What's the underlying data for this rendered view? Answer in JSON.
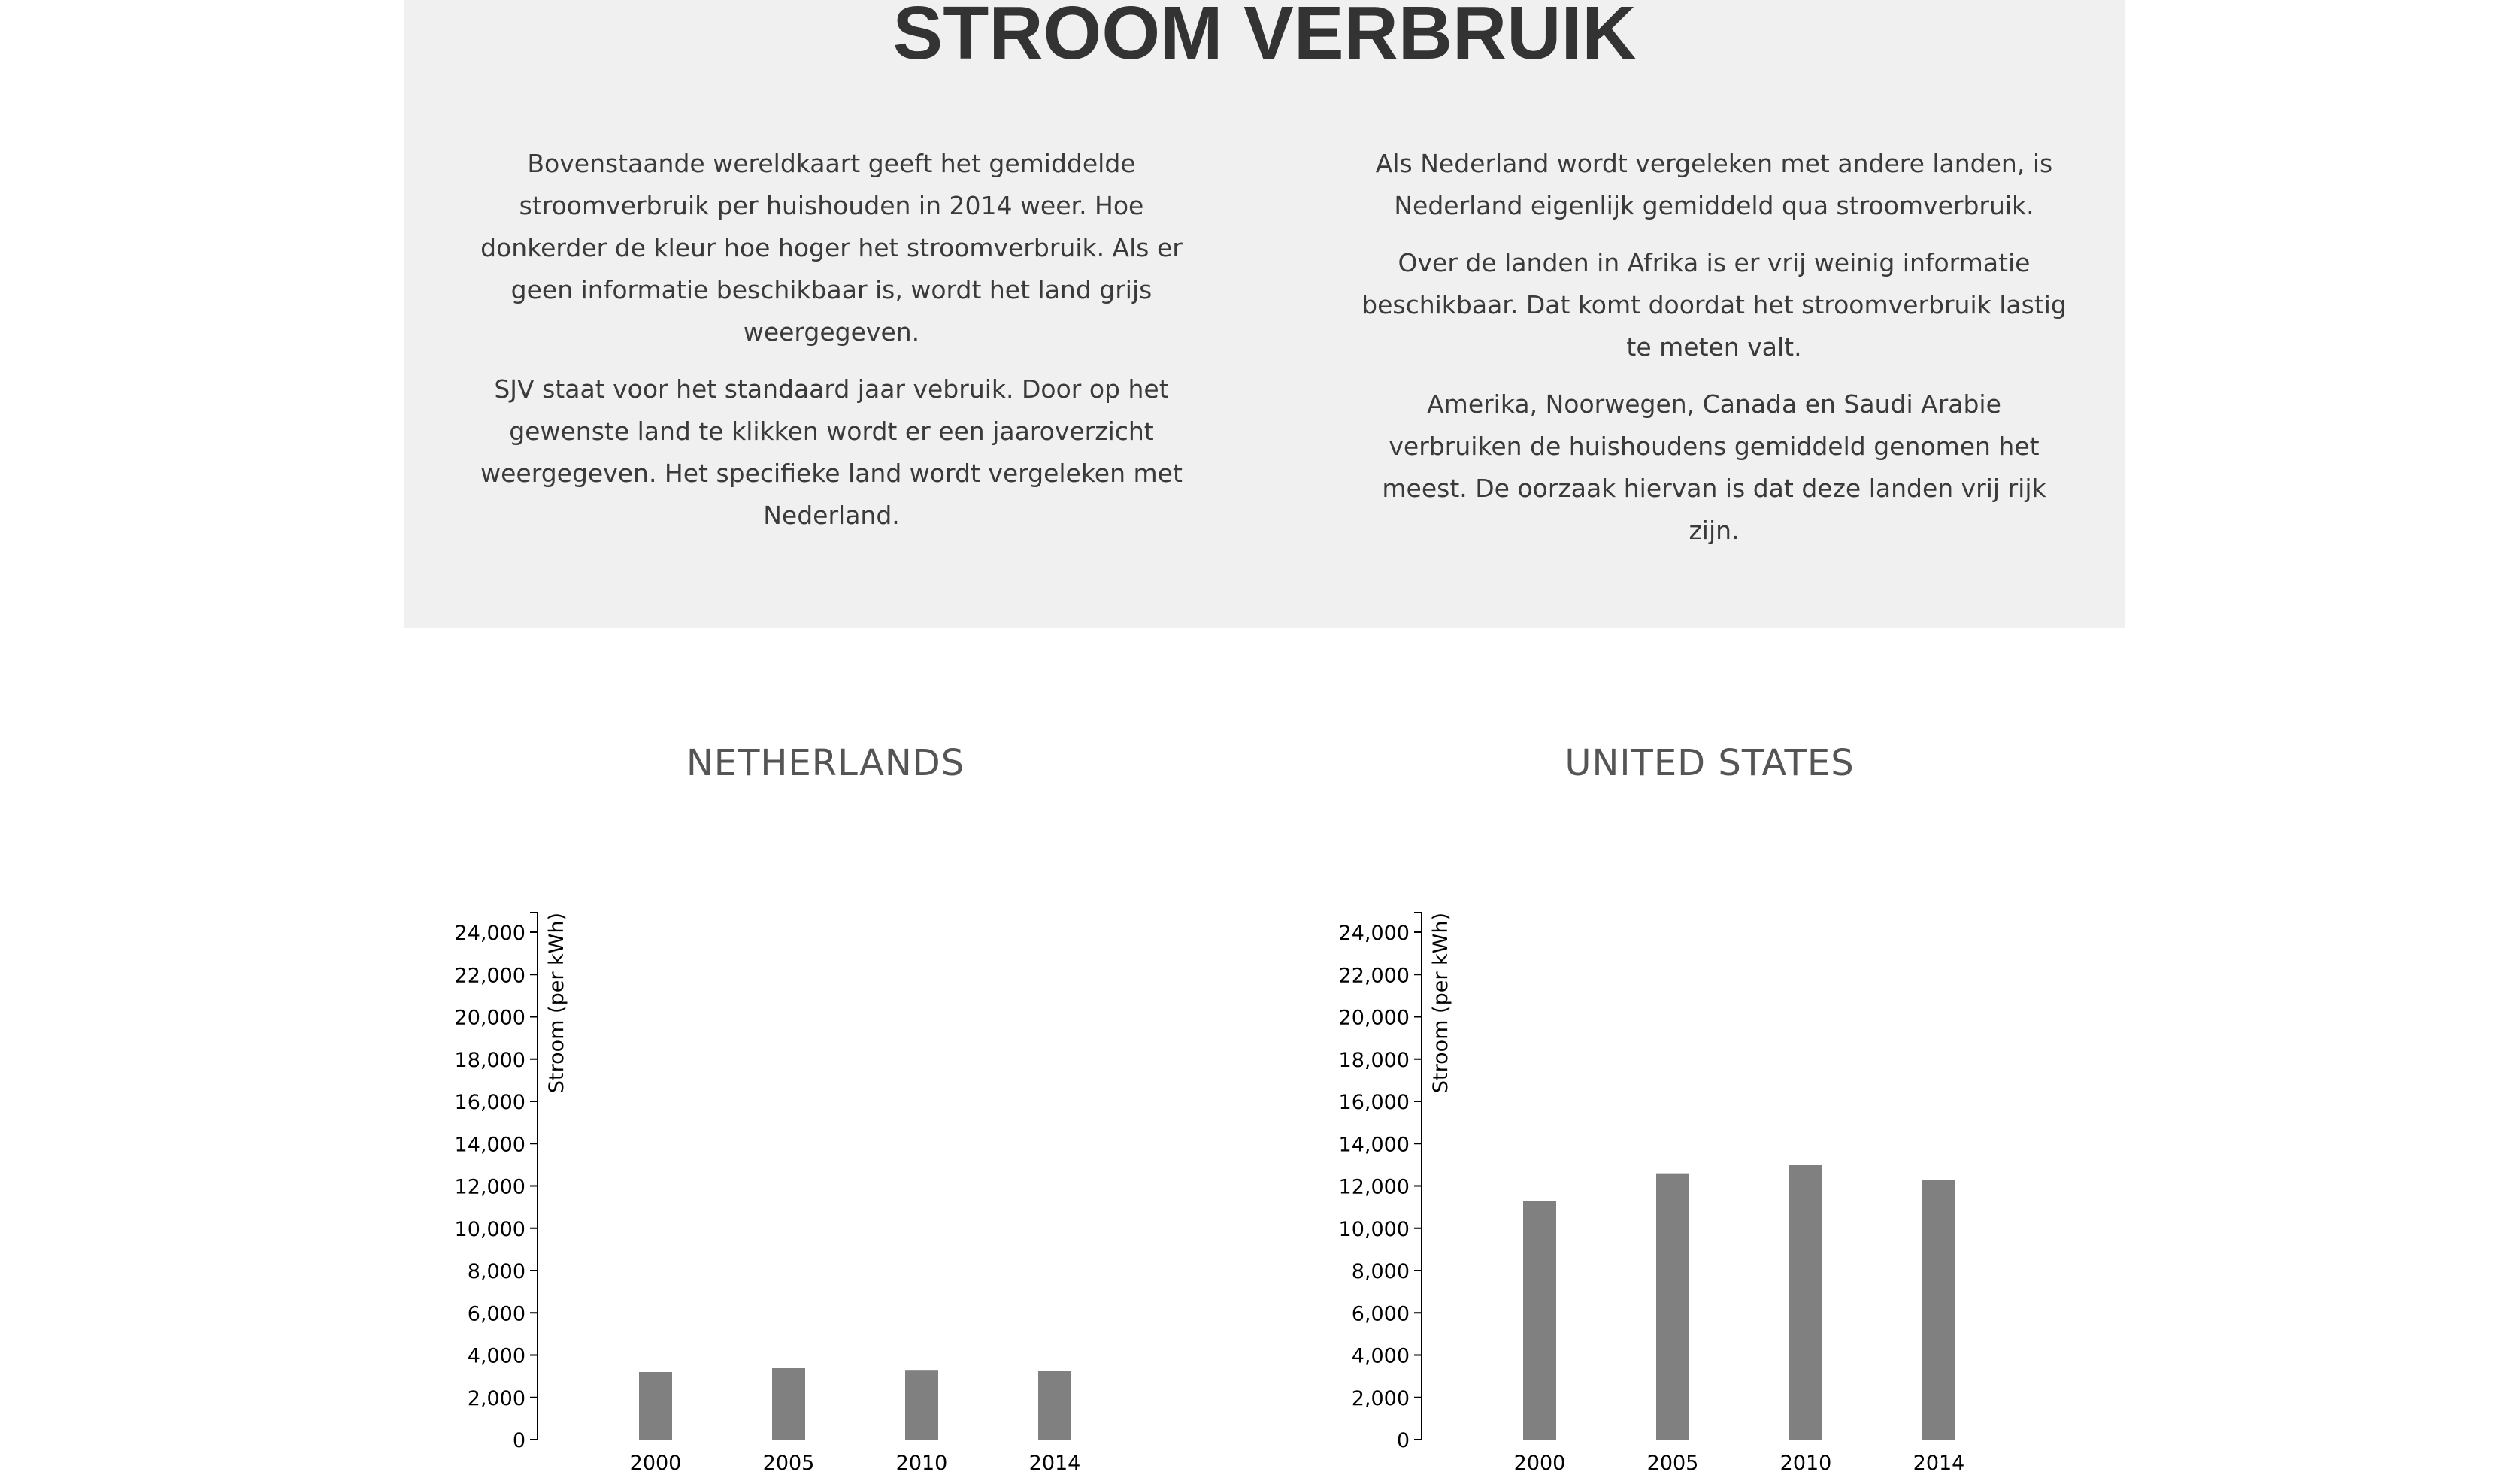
{
  "page": {
    "title": "STROOM VERBRUIK",
    "left_paragraphs": [
      "Bovenstaande wereldkaart geeft het gemiddelde stroomverbruik per huishouden in 2014 weer. Hoe donkerder de kleur hoe hoger het stroomverbruik. Als er geen informatie beschikbaar is, wordt het land grijs weergegeven.",
      "SJV staat voor het standaard jaar vebruik. Door op het gewenste land te klikken wordt er een jaaroverzicht weergegeven. Het specifieke land wordt vergeleken met Nederland."
    ],
    "right_paragraphs": [
      "Als Nederland wordt vergeleken met andere landen, is Nederland eigenlijk gemiddeld qua stroomverbruik.",
      "Over de landen in Afrika is er vrij weinig informatie beschikbaar. Dat komt doordat het stroomverbruik lastig te meten valt.",
      "Amerika, Noorwegen, Canada en Saudi Arabie verbruiken de huishoudens gemiddeld genomen het meest. De oorzaak hiervan is dat deze landen vrij rijk zijn."
    ]
  },
  "colors": {
    "panel": "#f0f0f0",
    "bar": "#808080",
    "axis": "#000000"
  },
  "chart_data": [
    {
      "type": "bar",
      "title": "NETHERLANDS",
      "ylabel": "Stroom (per kWh)",
      "xlabel": "",
      "categories": [
        "2000",
        "2005",
        "2010",
        "2014"
      ],
      "values": [
        3200,
        3400,
        3300,
        3250
      ],
      "ylim": [
        0,
        24000
      ],
      "yticks": [
        0,
        2000,
        4000,
        6000,
        8000,
        10000,
        12000,
        14000,
        16000,
        18000,
        20000,
        22000,
        24000
      ],
      "ytick_labels": [
        "0",
        "2,000",
        "4,000",
        "6,000",
        "8,000",
        "10,000",
        "12,000",
        "14,000",
        "16,000",
        "18,000",
        "20,000",
        "22,000",
        "24,000"
      ],
      "grid": false
    },
    {
      "type": "bar",
      "title": "UNITED STATES",
      "ylabel": "Stroom (per kWh)",
      "xlabel": "",
      "categories": [
        "2000",
        "2005",
        "2010",
        "2014"
      ],
      "values": [
        11300,
        12600,
        13000,
        12300
      ],
      "ylim": [
        0,
        24000
      ],
      "yticks": [
        0,
        2000,
        4000,
        6000,
        8000,
        10000,
        12000,
        14000,
        16000,
        18000,
        20000,
        22000,
        24000
      ],
      "ytick_labels": [
        "0",
        "2,000",
        "4,000",
        "6,000",
        "8,000",
        "10,000",
        "12,000",
        "14,000",
        "16,000",
        "18,000",
        "20,000",
        "22,000",
        "24,000"
      ],
      "grid": false
    }
  ]
}
